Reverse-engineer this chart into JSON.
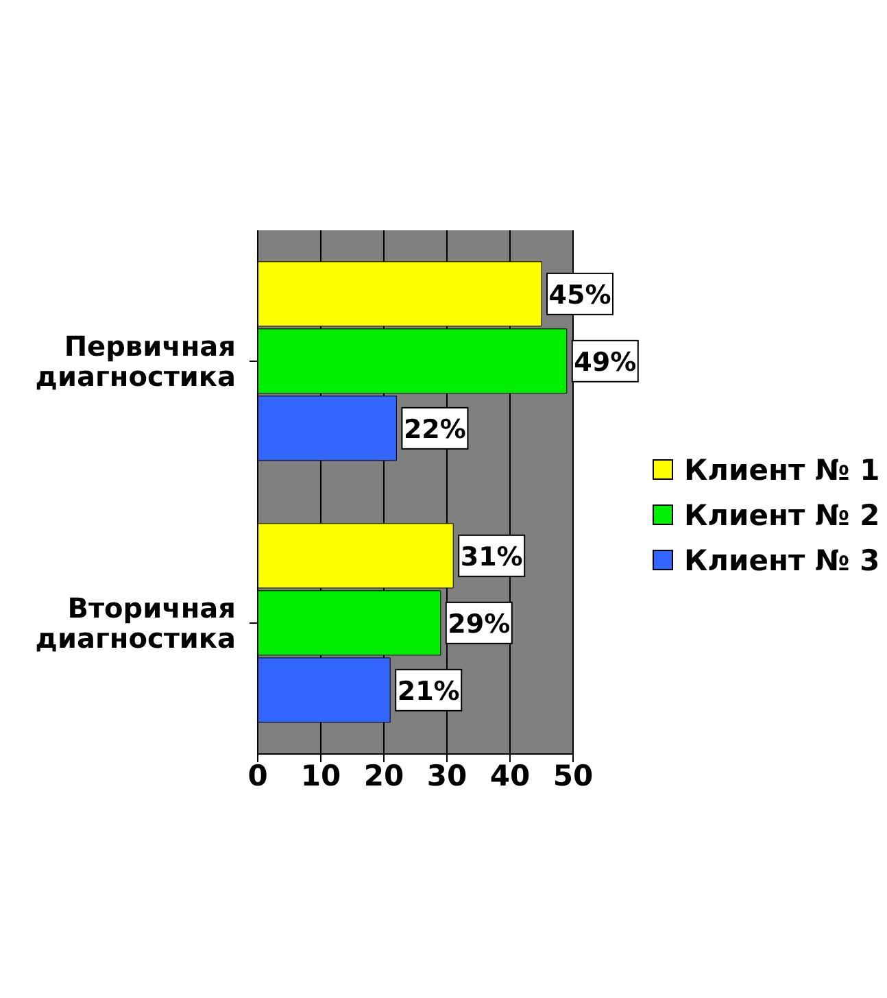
{
  "chart_data": {
    "type": "bar",
    "orientation": "horizontal",
    "categories": [
      "Первичная диагностика",
      "Вторичная диагностика"
    ],
    "series": [
      {
        "name": "Клиент № 1",
        "color": "#ffff00",
        "values": [
          45,
          31
        ],
        "value_labels": [
          "45%",
          "31%"
        ]
      },
      {
        "name": "Клиент № 2",
        "color": "#00ee00",
        "values": [
          49,
          29
        ],
        "value_labels": [
          "49%",
          "29%"
        ]
      },
      {
        "name": "Клиент № 3",
        "color": "#3366ff",
        "values": [
          22,
          21
        ],
        "value_labels": [
          "22%",
          "21%"
        ]
      }
    ],
    "xlim": [
      0,
      50
    ],
    "xticks": [
      0,
      10,
      20,
      30,
      40,
      50
    ],
    "grid": "x",
    "legend": "right"
  }
}
